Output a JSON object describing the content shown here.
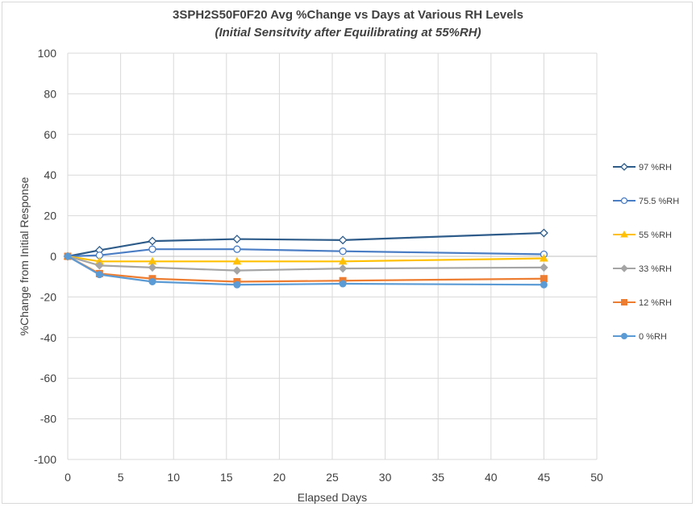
{
  "chart_data": {
    "type": "line",
    "title": "3SPH2S50F0F20 Avg %Change vs Days at Various RH Levels",
    "subtitle": "(Initial Sensitvity after Equilibrating at 55%RH)",
    "xlabel": "Elapsed Days",
    "ylabel": "%Change from Initial Response",
    "xlim": [
      0,
      50
    ],
    "ylim": [
      -100,
      100
    ],
    "xticks": [
      0,
      5,
      10,
      15,
      20,
      25,
      30,
      35,
      40,
      45,
      50
    ],
    "yticks": [
      100,
      80,
      60,
      40,
      20,
      0,
      -20,
      -40,
      -60,
      -80,
      -100
    ],
    "grid": true,
    "legend_position": "right",
    "x": [
      0,
      3,
      8,
      16,
      26,
      45
    ],
    "series": [
      {
        "name": "97 %RH",
        "values": [
          0,
          3,
          7.5,
          8.5,
          8,
          11.5
        ],
        "color": "#2e5c8a",
        "marker": "diamond-open"
      },
      {
        "name": "75.5 %RH",
        "values": [
          0,
          0.5,
          3.5,
          3.5,
          2.5,
          1
        ],
        "color": "#4a7dc4",
        "marker": "circle-open"
      },
      {
        "name": "55 %RH",
        "values": [
          0,
          -2.5,
          -2.5,
          -2.5,
          -2.5,
          -1
        ],
        "color": "#ffc000",
        "marker": "triangle"
      },
      {
        "name": "33 %RH",
        "values": [
          0,
          -4.5,
          -5.5,
          -7,
          -6,
          -5.5
        ],
        "color": "#a5a5a5",
        "marker": "diamond"
      },
      {
        "name": "12 %RH",
        "values": [
          0,
          -8.5,
          -11,
          -12.5,
          -12,
          -11
        ],
        "color": "#ed7d31",
        "marker": "square"
      },
      {
        "name": "0 %RH",
        "values": [
          0,
          -9,
          -12.5,
          -14,
          -13.5,
          -14
        ],
        "color": "#5b9bd5",
        "marker": "circle"
      }
    ]
  }
}
